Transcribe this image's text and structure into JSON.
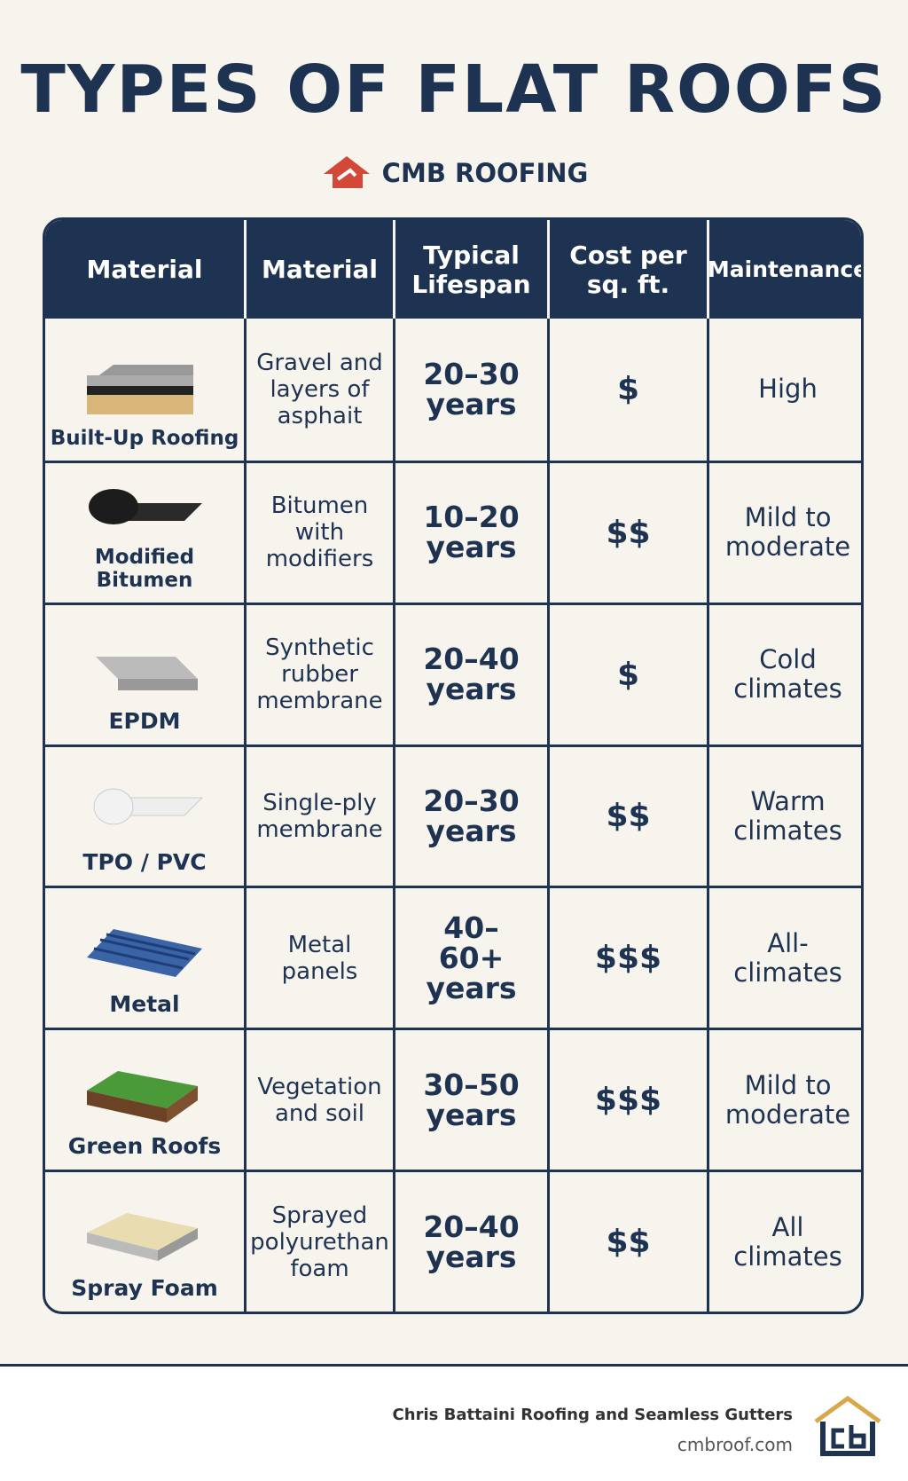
{
  "header": {
    "title": "TYPES OF FLAT ROOFS",
    "brand": "CMB ROOFING"
  },
  "table": {
    "columns": [
      "Material",
      "Material",
      "Typical Lifespan",
      "Cost per sq. ft.",
      "Maintenance"
    ],
    "rows": [
      [
        "Built-Up Roofing",
        "Gravel and layers of asphait",
        "20–30 years",
        "$",
        "High"
      ],
      [
        "Modified Bitumen",
        "Bitumen with modifiers",
        "10–20 years",
        "$$",
        "Mild to moderate"
      ],
      [
        "EPDM",
        "Synthetic rubber membrane",
        "20–40 years",
        "$",
        "Cold climates"
      ],
      [
        "TPO / PVC",
        "Single-ply membrane",
        "20–30 years",
        "$$",
        "Warm climates"
      ],
      [
        "Metal",
        "Metal panels",
        "40–60+ years",
        "$$$",
        "All-climates"
      ],
      [
        "Green Roofs",
        "Vegetation and soil",
        "30–50 years",
        "$$$",
        "Mild to moderate"
      ],
      [
        "Spray Foam",
        "Sprayed polyurethan foam",
        "20–40 years",
        "$$",
        "All climates"
      ]
    ]
  },
  "footer": {
    "company": "Chris Battaini Roofing and Seamless Gutters",
    "website": "cmbroof.com"
  }
}
